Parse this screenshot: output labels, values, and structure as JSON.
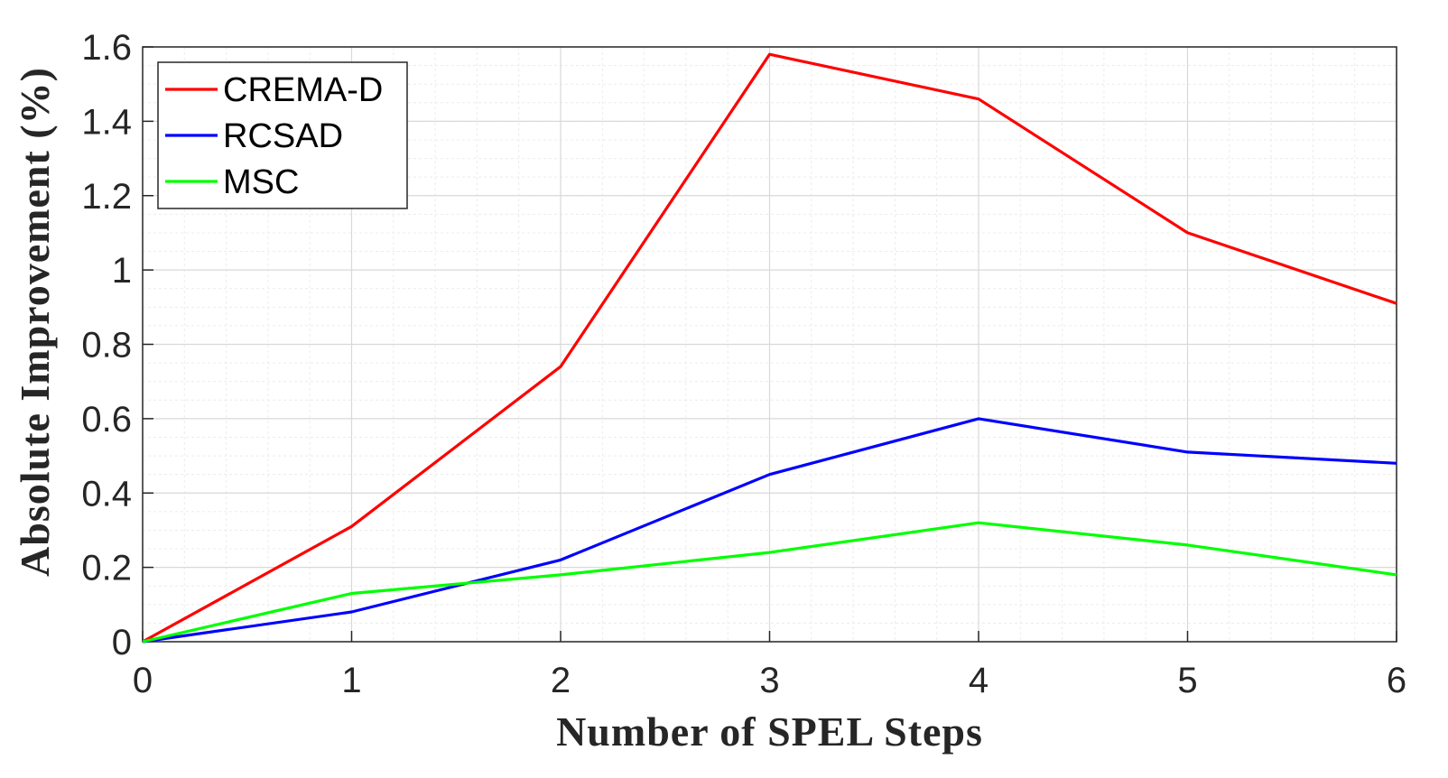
{
  "chart_data": {
    "type": "line",
    "title": "",
    "xlabel": "Number of SPEL Steps",
    "ylabel": "Absolute Improvement (%)",
    "x": [
      0,
      1,
      2,
      3,
      4,
      5,
      6
    ],
    "xlim": [
      0,
      6
    ],
    "ylim": [
      0,
      1.6
    ],
    "xticks": [
      0,
      1,
      2,
      3,
      4,
      5,
      6
    ],
    "yticks": [
      0,
      0.2,
      0.4,
      0.6,
      0.8,
      1,
      1.2,
      1.4,
      1.6
    ],
    "xtick_labels": [
      "0",
      "1",
      "2",
      "3",
      "4",
      "5",
      "6"
    ],
    "ytick_labels": [
      "0",
      "0.2",
      "0.4",
      "0.6",
      "0.8",
      "1",
      "1.2",
      "1.4",
      "1.6"
    ],
    "grid": true,
    "minor_grid": true,
    "legend_position": "top-left",
    "series": [
      {
        "name": "CREMA-D",
        "color": "#ff0000",
        "values": [
          0,
          0.31,
          0.74,
          1.58,
          1.46,
          1.1,
          0.91
        ]
      },
      {
        "name": "RCSAD",
        "color": "#0000ff",
        "values": [
          0,
          0.08,
          0.22,
          0.45,
          0.6,
          0.51,
          0.48
        ]
      },
      {
        "name": "MSC",
        "color": "#00ff00",
        "values": [
          0,
          0.13,
          0.18,
          0.24,
          0.32,
          0.26,
          0.18
        ]
      }
    ]
  }
}
